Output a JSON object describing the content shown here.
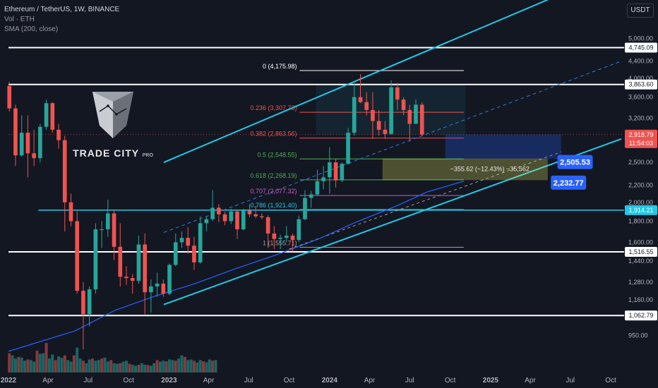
{
  "header": {
    "title": "Ethereum / TetherUS, 1W, BINANCE",
    "volume_label": "Vol · ETH",
    "sma_label": "SMA (200, close)"
  },
  "currency_button": "USDT",
  "logo": {
    "brand": "TRADE CITY",
    "suffix": "PRO"
  },
  "colors": {
    "background": "#131722",
    "up": "#26a69a",
    "down": "#ef5350",
    "channel": "#22c8e6",
    "sma": "#2962ff",
    "projection_blue": "#2962ff",
    "target_zone": "#e8e85a"
  },
  "chart_data": {
    "type": "candlestick",
    "symbol": "ETHUSDT",
    "timeframe": "1W",
    "scale": "log",
    "ylim": [
      870,
      6000
    ],
    "xlim": [
      "2022-01-01",
      "2025-10-25"
    ],
    "x_ticks": [
      {
        "label": "2022",
        "date": "2022-01-01",
        "bold": true
      },
      {
        "label": "Apr",
        "date": "2022-04-01"
      },
      {
        "label": "Jul",
        "date": "2022-07-01"
      },
      {
        "label": "Oct",
        "date": "2022-10-01"
      },
      {
        "label": "2023",
        "date": "2023-01-01",
        "bold": true
      },
      {
        "label": "Apr",
        "date": "2023-04-01"
      },
      {
        "label": "Jul",
        "date": "2023-07-01"
      },
      {
        "label": "Oct",
        "date": "2023-10-01"
      },
      {
        "label": "2024",
        "date": "2024-01-01",
        "bold": true
      },
      {
        "label": "Apr",
        "date": "2024-04-01"
      },
      {
        "label": "Jul",
        "date": "2024-07-01"
      },
      {
        "label": "Oct",
        "date": "2024-10-01"
      },
      {
        "label": "2025",
        "date": "2025-01-01",
        "bold": true
      },
      {
        "label": "Apr",
        "date": "2025-04-01"
      },
      {
        "label": "Jul",
        "date": "2025-07-01"
      },
      {
        "label": "Oct",
        "date": "2025-10-01"
      }
    ],
    "y_ticks": [
      "5,000.00",
      "4,400.00",
      "4,000.00",
      "3,600.00",
      "3,200.00",
      "2,500.00",
      "2,200.00",
      "2,000.00",
      "1,800.00",
      "1,600.00",
      "1,440.00",
      "1,280.00",
      "1,160.00",
      "950.00"
    ],
    "price_marks": [
      {
        "value": 4745.09,
        "label": "4,745.09",
        "style": "plain"
      },
      {
        "value": 3863.6,
        "label": "3,863.60",
        "style": "plain"
      },
      {
        "value": 2918.79,
        "label": "2,918.79",
        "sub": "11:54:03",
        "style": "current"
      },
      {
        "value": 1914.21,
        "label": "1,914.21",
        "style": "cyan"
      },
      {
        "value": 1516.55,
        "label": "1,516.55",
        "style": "plain"
      },
      {
        "value": 1062.79,
        "label": "1,062.79",
        "style": "plain"
      }
    ],
    "horizontal_levels": [
      {
        "value": 4745.09,
        "color": "#ffffff",
        "width": 2,
        "from": "2022-01-01"
      },
      {
        "value": 3863.6,
        "color": "#ffffff",
        "width": 2,
        "from": "2022-01-01"
      },
      {
        "value": 1516.55,
        "color": "#ffffff",
        "width": 2,
        "from": "2022-01-01"
      },
      {
        "value": 1062.79,
        "color": "#ffffff",
        "width": 2,
        "from": "2022-01-01"
      },
      {
        "value": 1914.21,
        "color": "#22c8e6",
        "width": 1.5,
        "from": "2022-03-10"
      },
      {
        "value": 2918.79,
        "color": "#ef5350",
        "width": 0.6,
        "from": "2022-01-01",
        "dotted": true
      }
    ],
    "fibonacci": [
      {
        "ratio": "0",
        "label": "0 (4,175.98)",
        "value": 4175.98,
        "color": "#ffffff"
      },
      {
        "ratio": "0.236",
        "label": "0.236 (3,307.73)",
        "value": 3307.73,
        "color": "#ef5350"
      },
      {
        "ratio": "0.382",
        "label": "0.382 (2,863.56)",
        "value": 2863.56,
        "color": "#ef5350"
      },
      {
        "ratio": "0.5",
        "label": "0.5 (2,548.55)",
        "value": 2548.55,
        "color": "#4caf50"
      },
      {
        "ratio": "0.618",
        "label": "0.618 (2,268.19)",
        "value": 2268.19,
        "color": "#4caf50"
      },
      {
        "ratio": "0.707",
        "label": "0.707 (2,077.32)",
        "value": 2077.32,
        "color": "#d05ad0"
      },
      {
        "ratio": "0.786",
        "label": "0.786 (1,921.40)",
        "value": 1921.4,
        "color": "#22c8e6"
      },
      {
        "ratio": "1",
        "label": "1 (1,555.71)",
        "value": 1555.71,
        "color": "#9e9e9e"
      }
    ],
    "fib_range": [
      "2023-10-25",
      "2024-11-01"
    ],
    "channel": {
      "lower": [
        [
          "2022-12-20",
          1130
        ],
        [
          "2025-10-25",
          2850
        ]
      ],
      "upper": [
        [
          "2022-12-20",
          2500
        ],
        [
          "2025-06-10",
          6400
        ]
      ],
      "mid": [
        [
          "2022-12-20",
          1690
        ],
        [
          "2025-10-25",
          4400
        ]
      ],
      "extended_lower_dashed": [
        [
          "2023-10-01",
          1540
        ],
        [
          "2025-06-10",
          2650
        ]
      ]
    },
    "cyan_box": {
      "from": "2023-12-01",
      "to": "2024-11-05",
      "top": 3863.6,
      "bottom": 2918.79
    },
    "sma_200": [
      [
        "2022-01-01",
        870
      ],
      [
        "2022-06-01",
        975
      ],
      [
        "2022-09-01",
        1095
      ],
      [
        "2022-12-01",
        1185
      ],
      [
        "2023-03-01",
        1270
      ],
      [
        "2023-06-01",
        1380
      ],
      [
        "2023-09-01",
        1490
      ],
      [
        "2023-12-01",
        1620
      ],
      [
        "2024-03-01",
        1790
      ],
      [
        "2024-06-01",
        1960
      ],
      [
        "2024-08-10",
        2120
      ],
      [
        "2024-11-01",
        2250
      ]
    ],
    "projection": {
      "box_top": 2918.79,
      "box_bottom": 2548.55,
      "from": "2024-09-20",
      "to": "2025-06-10",
      "target_zone": {
        "from": "2024-05-01",
        "to": "2025-05-10",
        "top": 2548.55,
        "bottom": 2268.19
      },
      "measure_text": "−355.62 (−12.43%) −35,562",
      "tags": [
        {
          "label": "2,505.53",
          "value": 2505.53,
          "date": "2025-05-20"
        },
        {
          "label": "2,232.77",
          "value": 2232.77,
          "date": "2025-05-05"
        }
      ]
    },
    "candles": [
      {
        "t": "2022-01-03",
        "o": 3830,
        "h": 3920,
        "l": 3320,
        "c": 3380
      },
      {
        "t": "2022-01-17",
        "o": 3380,
        "h": 3450,
        "l": 2450,
        "c": 2600
      },
      {
        "t": "2022-01-31",
        "o": 2600,
        "h": 3250,
        "l": 2580,
        "c": 2950
      },
      {
        "t": "2022-02-14",
        "o": 2950,
        "h": 3250,
        "l": 2300,
        "c": 2630
      },
      {
        "t": "2022-02-28",
        "o": 2630,
        "h": 3000,
        "l": 2450,
        "c": 2560
      },
      {
        "t": "2022-03-14",
        "o": 2560,
        "h": 3100,
        "l": 2500,
        "c": 3050
      },
      {
        "t": "2022-03-28",
        "o": 3050,
        "h": 3550,
        "l": 3000,
        "c": 3480
      },
      {
        "t": "2022-04-11",
        "o": 3480,
        "h": 3500,
        "l": 2950,
        "c": 3000
      },
      {
        "t": "2022-04-25",
        "o": 3000,
        "h": 3100,
        "l": 2700,
        "c": 2830
      },
      {
        "t": "2022-05-09",
        "o": 2830,
        "h": 2900,
        "l": 1700,
        "c": 2000
      },
      {
        "t": "2022-05-23",
        "o": 2000,
        "h": 2100,
        "l": 1750,
        "c": 1800
      },
      {
        "t": "2022-06-06",
        "o": 1800,
        "h": 1900,
        "l": 1200,
        "c": 1220
      },
      {
        "t": "2022-06-20",
        "o": 1220,
        "h": 1280,
        "l": 880,
        "c": 1070
      },
      {
        "t": "2022-07-04",
        "o": 1070,
        "h": 1250,
        "l": 1000,
        "c": 1230
      },
      {
        "t": "2022-07-18",
        "o": 1230,
        "h": 1780,
        "l": 1200,
        "c": 1720
      },
      {
        "t": "2022-08-01",
        "o": 1720,
        "h": 1800,
        "l": 1550,
        "c": 1720
      },
      {
        "t": "2022-08-15",
        "o": 1720,
        "h": 2030,
        "l": 1650,
        "c": 1880
      },
      {
        "t": "2022-08-29",
        "o": 1880,
        "h": 1920,
        "l": 1450,
        "c": 1560
      },
      {
        "t": "2022-09-12",
        "o": 1560,
        "h": 1780,
        "l": 1250,
        "c": 1320
      },
      {
        "t": "2022-09-26",
        "o": 1320,
        "h": 1400,
        "l": 1260,
        "c": 1310
      },
      {
        "t": "2022-10-10",
        "o": 1310,
        "h": 1340,
        "l": 1200,
        "c": 1290
      },
      {
        "t": "2022-10-24",
        "o": 1290,
        "h": 1660,
        "l": 1270,
        "c": 1580
      },
      {
        "t": "2022-11-07",
        "o": 1580,
        "h": 1680,
        "l": 1070,
        "c": 1210
      },
      {
        "t": "2022-11-21",
        "o": 1210,
        "h": 1300,
        "l": 1080,
        "c": 1250
      },
      {
        "t": "2022-12-05",
        "o": 1250,
        "h": 1350,
        "l": 1180,
        "c": 1270
      },
      {
        "t": "2022-12-19",
        "o": 1270,
        "h": 1300,
        "l": 1180,
        "c": 1200
      },
      {
        "t": "2023-01-02",
        "o": 1200,
        "h": 1420,
        "l": 1190,
        "c": 1410
      },
      {
        "t": "2023-01-16",
        "o": 1410,
        "h": 1680,
        "l": 1400,
        "c": 1600
      },
      {
        "t": "2023-01-30",
        "o": 1600,
        "h": 1700,
        "l": 1550,
        "c": 1640
      },
      {
        "t": "2023-02-13",
        "o": 1640,
        "h": 1740,
        "l": 1500,
        "c": 1570
      },
      {
        "t": "2023-02-27",
        "o": 1570,
        "h": 1650,
        "l": 1370,
        "c": 1430
      },
      {
        "t": "2023-03-13",
        "o": 1430,
        "h": 1850,
        "l": 1420,
        "c": 1780
      },
      {
        "t": "2023-03-27",
        "o": 1780,
        "h": 1850,
        "l": 1700,
        "c": 1820
      },
      {
        "t": "2023-04-10",
        "o": 1820,
        "h": 2140,
        "l": 1800,
        "c": 1940
      },
      {
        "t": "2023-04-24",
        "o": 1940,
        "h": 1980,
        "l": 1790,
        "c": 1870
      },
      {
        "t": "2023-05-08",
        "o": 1870,
        "h": 1900,
        "l": 1760,
        "c": 1800
      },
      {
        "t": "2023-05-22",
        "o": 1800,
        "h": 1930,
        "l": 1770,
        "c": 1900
      },
      {
        "t": "2023-06-05",
        "o": 1900,
        "h": 1920,
        "l": 1630,
        "c": 1720
      },
      {
        "t": "2023-06-19",
        "o": 1720,
        "h": 1930,
        "l": 1710,
        "c": 1910
      },
      {
        "t": "2023-07-03",
        "o": 1910,
        "h": 1980,
        "l": 1840,
        "c": 1870
      },
      {
        "t": "2023-07-17",
        "o": 1870,
        "h": 1960,
        "l": 1830,
        "c": 1850
      },
      {
        "t": "2023-07-31",
        "o": 1850,
        "h": 1880,
        "l": 1820,
        "c": 1840
      },
      {
        "t": "2023-08-14",
        "o": 1840,
        "h": 1860,
        "l": 1550,
        "c": 1680
      },
      {
        "t": "2023-08-28",
        "o": 1680,
        "h": 1750,
        "l": 1540,
        "c": 1630
      },
      {
        "t": "2023-09-11",
        "o": 1630,
        "h": 1670,
        "l": 1540,
        "c": 1640
      },
      {
        "t": "2023-09-25",
        "o": 1640,
        "h": 1750,
        "l": 1600,
        "c": 1660
      },
      {
        "t": "2023-10-09",
        "o": 1660,
        "h": 1680,
        "l": 1520,
        "c": 1620
      },
      {
        "t": "2023-10-23",
        "o": 1620,
        "h": 1860,
        "l": 1600,
        "c": 1820
      },
      {
        "t": "2023-11-06",
        "o": 1820,
        "h": 2140,
        "l": 1810,
        "c": 2050
      },
      {
        "t": "2023-11-20",
        "o": 2050,
        "h": 2130,
        "l": 1940,
        "c": 2090
      },
      {
        "t": "2023-12-04",
        "o": 2090,
        "h": 2400,
        "l": 2080,
        "c": 2250
      },
      {
        "t": "2023-12-18",
        "o": 2250,
        "h": 2450,
        "l": 2150,
        "c": 2300
      },
      {
        "t": "2024-01-01",
        "o": 2300,
        "h": 2720,
        "l": 2100,
        "c": 2500
      },
      {
        "t": "2024-01-15",
        "o": 2500,
        "h": 2550,
        "l": 2170,
        "c": 2260
      },
      {
        "t": "2024-01-29",
        "o": 2260,
        "h": 2500,
        "l": 2240,
        "c": 2480
      },
      {
        "t": "2024-02-12",
        "o": 2480,
        "h": 3030,
        "l": 2470,
        "c": 2950
      },
      {
        "t": "2024-02-26",
        "o": 2950,
        "h": 3900,
        "l": 2900,
        "c": 3600
      },
      {
        "t": "2024-03-11",
        "o": 3600,
        "h": 4090,
        "l": 3480,
        "c": 3500
      },
      {
        "t": "2024-03-25",
        "o": 3500,
        "h": 3700,
        "l": 3250,
        "c": 3350
      },
      {
        "t": "2024-04-08",
        "o": 3350,
        "h": 3700,
        "l": 2850,
        "c": 3150
      },
      {
        "t": "2024-04-22",
        "o": 3150,
        "h": 3350,
        "l": 2900,
        "c": 3000
      },
      {
        "t": "2024-05-06",
        "o": 3000,
        "h": 3150,
        "l": 2850,
        "c": 2930
      },
      {
        "t": "2024-05-20",
        "o": 2930,
        "h": 3950,
        "l": 2920,
        "c": 3800
      },
      {
        "t": "2024-06-03",
        "o": 3800,
        "h": 3900,
        "l": 3350,
        "c": 3550
      },
      {
        "t": "2024-06-17",
        "o": 3550,
        "h": 3600,
        "l": 3250,
        "c": 3350
      },
      {
        "t": "2024-07-01",
        "o": 3350,
        "h": 3450,
        "l": 2810,
        "c": 3100
      },
      {
        "t": "2024-07-15",
        "o": 3100,
        "h": 3550,
        "l": 3100,
        "c": 3450
      },
      {
        "t": "2024-07-29",
        "o": 3450,
        "h": 3500,
        "l": 2900,
        "c": 2918.79
      }
    ],
    "volume": {
      "ylim": [
        0,
        1
      ],
      "bars": [
        0.62,
        0.55,
        0.45,
        0.5,
        0.48,
        0.38,
        0.42,
        0.4,
        0.35,
        0.7,
        0.6,
        0.62,
        0.95,
        0.45,
        0.58,
        0.4,
        0.52,
        0.47,
        0.55,
        0.4,
        0.35,
        0.55,
        0.8,
        0.45,
        0.38,
        0.3,
        0.42,
        0.45,
        0.38,
        0.4,
        0.45,
        0.48,
        0.35,
        0.4,
        0.3,
        0.28,
        0.3,
        0.35,
        0.38,
        0.28,
        0.25,
        0.22,
        0.25,
        0.3,
        0.25,
        0.24,
        0.22,
        0.3,
        0.4,
        0.35,
        0.38,
        0.36,
        0.42,
        0.4,
        0.38,
        0.45,
        0.55,
        0.5,
        0.4,
        0.42,
        0.38,
        0.32,
        0.4,
        0.36,
        0.33,
        0.42,
        0.38,
        0.4
      ]
    }
  }
}
